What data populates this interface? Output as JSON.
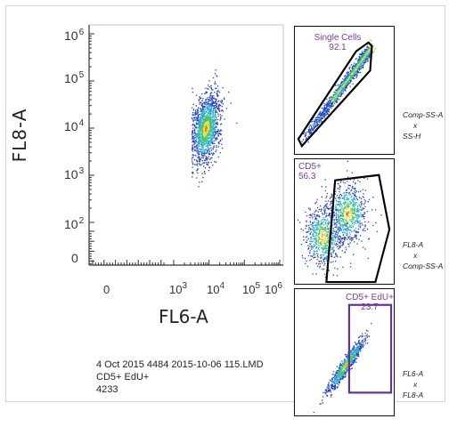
{
  "chart_data": [
    {
      "type": "scatter",
      "name": "main-density-plot",
      "xlabel": "FL6-A",
      "ylabel": "FL8-A",
      "x_ticks": [
        {
          "base": "0",
          "exp": ""
        },
        {
          "base": "10",
          "exp": "3"
        },
        {
          "base": "10",
          "exp": "4"
        },
        {
          "base": "10",
          "exp": "5"
        },
        {
          "base": "10",
          "exp": "6"
        }
      ],
      "y_ticks": [
        {
          "base": "0",
          "exp": ""
        },
        {
          "base": "10",
          "exp": "2"
        },
        {
          "base": "10",
          "exp": "3"
        },
        {
          "base": "10",
          "exp": "4"
        },
        {
          "base": "10",
          "exp": "5"
        },
        {
          "base": "10",
          "exp": "6"
        }
      ],
      "scale": "log (biexponential near 0)",
      "population": {
        "center_log10": [
          3.9,
          4.0
        ],
        "spread_log10": [
          0.2,
          0.35
        ],
        "left_cut_log10": 3.5,
        "approx_events": 4233
      }
    },
    {
      "type": "scatter",
      "name": "single-cells-gate-plot",
      "axes_text": [
        "Comp-SS-A",
        "x",
        "SS-H"
      ],
      "gate": {
        "name": "Single Cells",
        "value": "92.1"
      }
    },
    {
      "type": "scatter",
      "name": "cd5-gate-plot",
      "axes_text": [
        "FL8-A",
        "x",
        "Comp-SS-A"
      ],
      "gate": {
        "name": "CD5+",
        "value": "56.3"
      }
    },
    {
      "type": "scatter",
      "name": "cd5-edu-gate-plot",
      "axes_text": [
        "FL6-A",
        "x",
        "FL8-A"
      ],
      "gate": {
        "name": "CD5+ EdU+",
        "value": "23.7"
      }
    }
  ],
  "info": {
    "line1": "4 Oct 2015 4484 2015-10-06 115.LMD",
    "line2": "CD5+ EdU+",
    "line3": "4233"
  },
  "colors": {
    "density_low": "#1f3fbf",
    "density_mid": "#2aa9d6",
    "density_high": "#e9e23a",
    "density_peak": "#e8891c",
    "gate_outline": "#000000",
    "gate_label": "#7c3aa6",
    "edu_gate": "#6a2c9e"
  }
}
